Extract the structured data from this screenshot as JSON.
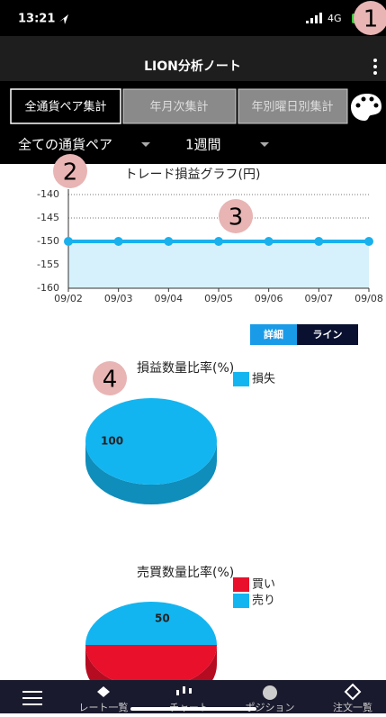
{
  "status": {
    "time": "13:21",
    "network": "4G"
  },
  "header": {
    "title": "LION分析ノート"
  },
  "tabs": [
    "全通貨ペア集計",
    "年月次集計",
    "年別曜日別集計"
  ],
  "filters": [
    "全ての通貨ペア",
    "1週間"
  ],
  "annotations": [
    "1",
    "2",
    "3",
    "4"
  ],
  "toggle": [
    "詳細",
    "ライン"
  ],
  "chart_data": [
    {
      "type": "line",
      "title": "トレード損益グラフ(円)",
      "categories": [
        "09/02",
        "09/03",
        "09/04",
        "09/05",
        "09/06",
        "09/07",
        "09/08"
      ],
      "values": [
        -150,
        -150,
        -150,
        -150,
        -150,
        -150,
        -150
      ],
      "color": "#1ab0ec",
      "ylim": [
        -160,
        -140
      ],
      "yticks": [
        -160,
        -155,
        -150,
        -145,
        -140
      ],
      "grid": true
    },
    {
      "type": "pie",
      "title": "損益数量比率(%)",
      "categories": [
        "損失"
      ],
      "values": [
        100
      ],
      "colors": [
        "#13b5f0"
      ]
    },
    {
      "type": "pie",
      "title": "売買数量比率(%)",
      "categories": [
        "買い",
        "売り"
      ],
      "values": [
        50,
        50
      ],
      "colors": [
        "#e8102a",
        "#13b5f0"
      ]
    }
  ],
  "nav": [
    "レート一覧",
    "チャート",
    "ポジション",
    "注文一覧"
  ]
}
